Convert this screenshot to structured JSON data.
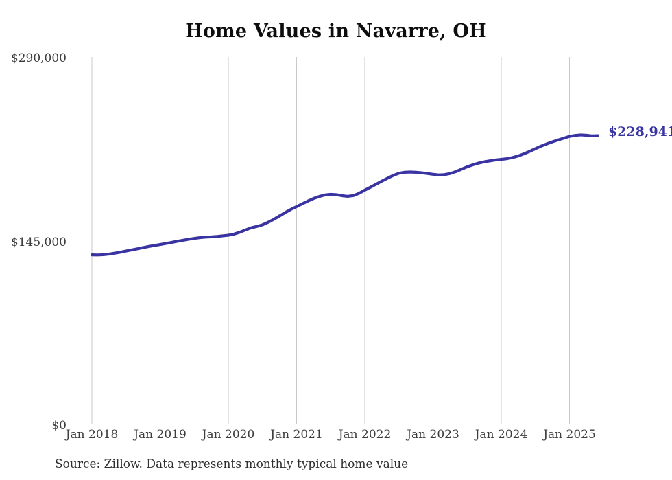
{
  "title": "Home Values in Navarre, OH",
  "end_label": "$228,941",
  "source_note": "Source: Zillow. Data represents monthly typical home value",
  "colors": {
    "line": "#3a34a3",
    "grid": "#c9c9c9",
    "axis_text": "#3d3d3d",
    "title_text": "#0d0d0d",
    "accent_text": "#3a34a3",
    "source_text": "#2e2e2e",
    "background": "#ffffff"
  },
  "y_axis": {
    "tick_labels": [
      "$0",
      "$145,000",
      "$290,000"
    ],
    "tick_values": [
      0,
      145000,
      290000
    ],
    "min": 0,
    "max": 290000
  },
  "x_axis": {
    "tick_labels": [
      "Jan 2018",
      "Jan 2019",
      "Jan 2020",
      "Jan 2021",
      "Jan 2022",
      "Jan 2023",
      "Jan 2024",
      "Jan 2025"
    ]
  },
  "chart_data": {
    "type": "line",
    "title": "Home Values in Navarre, OH",
    "xlabel": "",
    "ylabel": "",
    "ylim": [
      0,
      290000
    ],
    "grid": "vertical-only",
    "legend": "none",
    "x_tick_labels": [
      "Jan 2018",
      "Jan 2019",
      "Jan 2020",
      "Jan 2021",
      "Jan 2022",
      "Jan 2023",
      "Jan 2024",
      "Jan 2025"
    ],
    "y_tick_labels": [
      "$0",
      "$145,000",
      "$290,000"
    ],
    "last_value": 228941,
    "last_value_label": "$228,941",
    "source": "Source: Zillow. Data represents monthly typical home value",
    "series": [
      {
        "name": "Typical home value (USD)",
        "cadence": "monthly",
        "start_month": "2018-01",
        "end_month": "2025-06",
        "color": "#3a34a3",
        "values": [
          134900,
          134800,
          135000,
          135500,
          136200,
          137000,
          137900,
          138800,
          139700,
          140600,
          141500,
          142300,
          143100,
          143900,
          144700,
          145600,
          146400,
          147200,
          147900,
          148500,
          148900,
          149100,
          149400,
          149900,
          150400,
          151300,
          152700,
          154500,
          156200,
          157300,
          158600,
          160600,
          163000,
          165600,
          168300,
          170800,
          173000,
          175200,
          177400,
          179400,
          181000,
          182200,
          182700,
          182400,
          181600,
          181100,
          181700,
          183500,
          186000,
          188300,
          190700,
          193100,
          195400,
          197600,
          199300,
          200100,
          200300,
          200100,
          199700,
          199100,
          198500,
          198000,
          198200,
          199100,
          200600,
          202500,
          204400,
          206000,
          207300,
          208300,
          209100,
          209800,
          210300,
          210800,
          211700,
          213000,
          214700,
          216600,
          218700,
          220700,
          222500,
          224100,
          225600,
          227000,
          228400,
          229200,
          229600,
          229300,
          228800,
          228941
        ]
      }
    ]
  }
}
